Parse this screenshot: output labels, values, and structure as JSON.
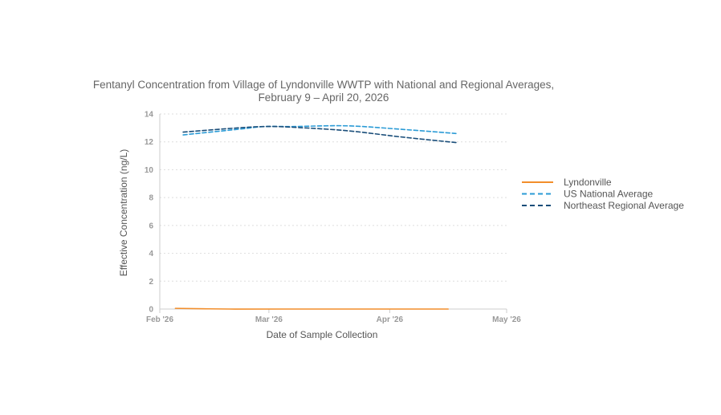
{
  "chart_data": {
    "type": "line",
    "title_lines": [
      "Fentanyl Concentration from Village of Lyndonville WWTP with National and Regional Averages,",
      "February 9 – April 20, 2026"
    ],
    "xlabel": "Date of Sample Collection",
    "ylabel": "Effective Concentration (ng/L)",
    "ylim": [
      0,
      14
    ],
    "yticks": [
      0,
      2,
      4,
      6,
      8,
      10,
      12,
      14
    ],
    "xlim": [
      "2026-02-01",
      "2026-05-01"
    ],
    "xticks": [
      {
        "date": "2026-02-01",
        "label": "Feb '26"
      },
      {
        "date": "2026-03-01",
        "label": "Mar '26"
      },
      {
        "date": "2026-04-01",
        "label": "Apr '26"
      },
      {
        "date": "2026-05-01",
        "label": "May '26"
      }
    ],
    "grid": true,
    "legend_position": "right",
    "series": [
      {
        "name": "Lyndonville",
        "color": "#f28e2b",
        "dash": "solid",
        "points": [
          {
            "x": "2026-02-05",
            "y": 0.05
          },
          {
            "x": "2026-02-19",
            "y": 0.0
          },
          {
            "x": "2026-03-05",
            "y": 0.0
          },
          {
            "x": "2026-03-19",
            "y": 0.0
          },
          {
            "x": "2026-04-02",
            "y": 0.0
          },
          {
            "x": "2026-04-16",
            "y": 0.0
          }
        ]
      },
      {
        "name": "US National Average",
        "color": "#2b9bd6",
        "dash": "dashed",
        "points": [
          {
            "x": "2026-02-07",
            "y": 12.5
          },
          {
            "x": "2026-02-21",
            "y": 12.9
          },
          {
            "x": "2026-02-28",
            "y": 13.1
          },
          {
            "x": "2026-03-07",
            "y": 13.1
          },
          {
            "x": "2026-03-21",
            "y": 13.15
          },
          {
            "x": "2026-04-04",
            "y": 12.9
          },
          {
            "x": "2026-04-18",
            "y": 12.6
          }
        ]
      },
      {
        "name": "Northeast Regional Average",
        "color": "#1a4e7a",
        "dash": "dashed",
        "points": [
          {
            "x": "2026-02-07",
            "y": 12.7
          },
          {
            "x": "2026-02-21",
            "y": 13.0
          },
          {
            "x": "2026-02-28",
            "y": 13.1
          },
          {
            "x": "2026-03-07",
            "y": 13.05
          },
          {
            "x": "2026-03-21",
            "y": 12.8
          },
          {
            "x": "2026-04-04",
            "y": 12.35
          },
          {
            "x": "2026-04-18",
            "y": 11.95
          }
        ]
      }
    ]
  }
}
